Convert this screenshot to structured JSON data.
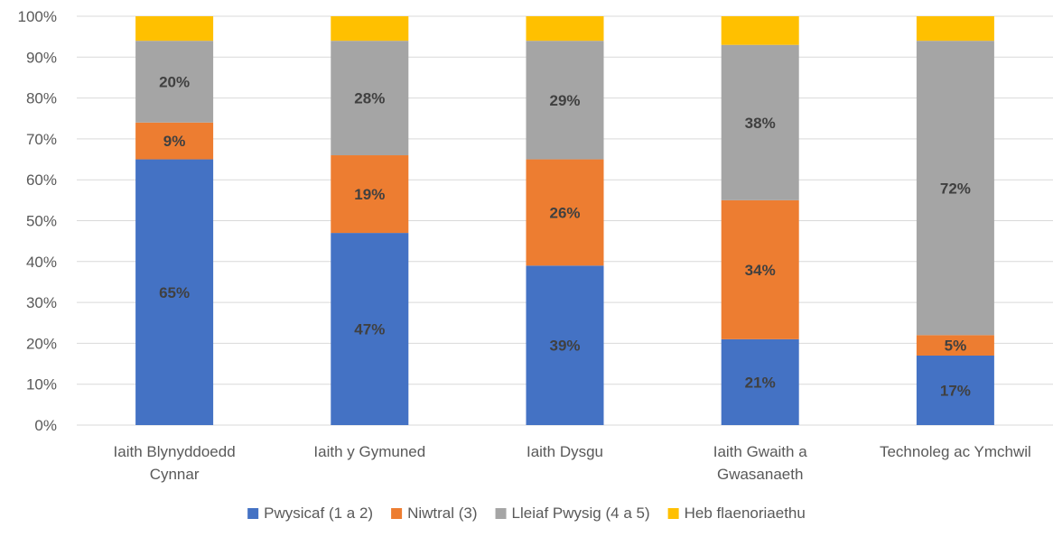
{
  "chart_data": {
    "type": "bar",
    "stacked": true,
    "percent_stacked": true,
    "title": "",
    "xlabel": "",
    "ylabel": "",
    "ylim": [
      0,
      100
    ],
    "yticks": [
      "0%",
      "10%",
      "20%",
      "30%",
      "40%",
      "50%",
      "60%",
      "70%",
      "80%",
      "90%",
      "100%"
    ],
    "grid": true,
    "legend_position": "bottom",
    "categories": [
      [
        "Iaith Blynyddoedd",
        "Cynnar"
      ],
      [
        "Iaith y Gymuned"
      ],
      [
        "Iaith Dysgu"
      ],
      [
        "Iaith Gwaith a",
        "Gwasanaeth"
      ],
      [
        "Technoleg ac Ymchwil"
      ]
    ],
    "series": [
      {
        "name": "Pwysicaf (1 a 2)",
        "color": "#4472C4",
        "values": [
          65,
          47,
          39,
          21,
          17
        ],
        "labels": [
          "65%",
          "47%",
          "39%",
          "21%",
          "17%"
        ]
      },
      {
        "name": "Niwtral (3)",
        "color": "#ED7D31",
        "values": [
          9,
          19,
          26,
          34,
          5
        ],
        "labels": [
          "9%",
          "19%",
          "26%",
          "34%",
          "5%"
        ]
      },
      {
        "name": "Lleiaf Pwysig (4 a 5)",
        "color": "#A5A5A5",
        "values": [
          20,
          28,
          29,
          38,
          72
        ],
        "labels": [
          "20%",
          "28%",
          "29%",
          "38%",
          "72%"
        ]
      },
      {
        "name": "Heb flaenoriaethu",
        "color": "#FFC000",
        "values": [
          6,
          6,
          6,
          7,
          6
        ],
        "labels": [
          "",
          "",
          "",
          "",
          ""
        ]
      }
    ]
  }
}
